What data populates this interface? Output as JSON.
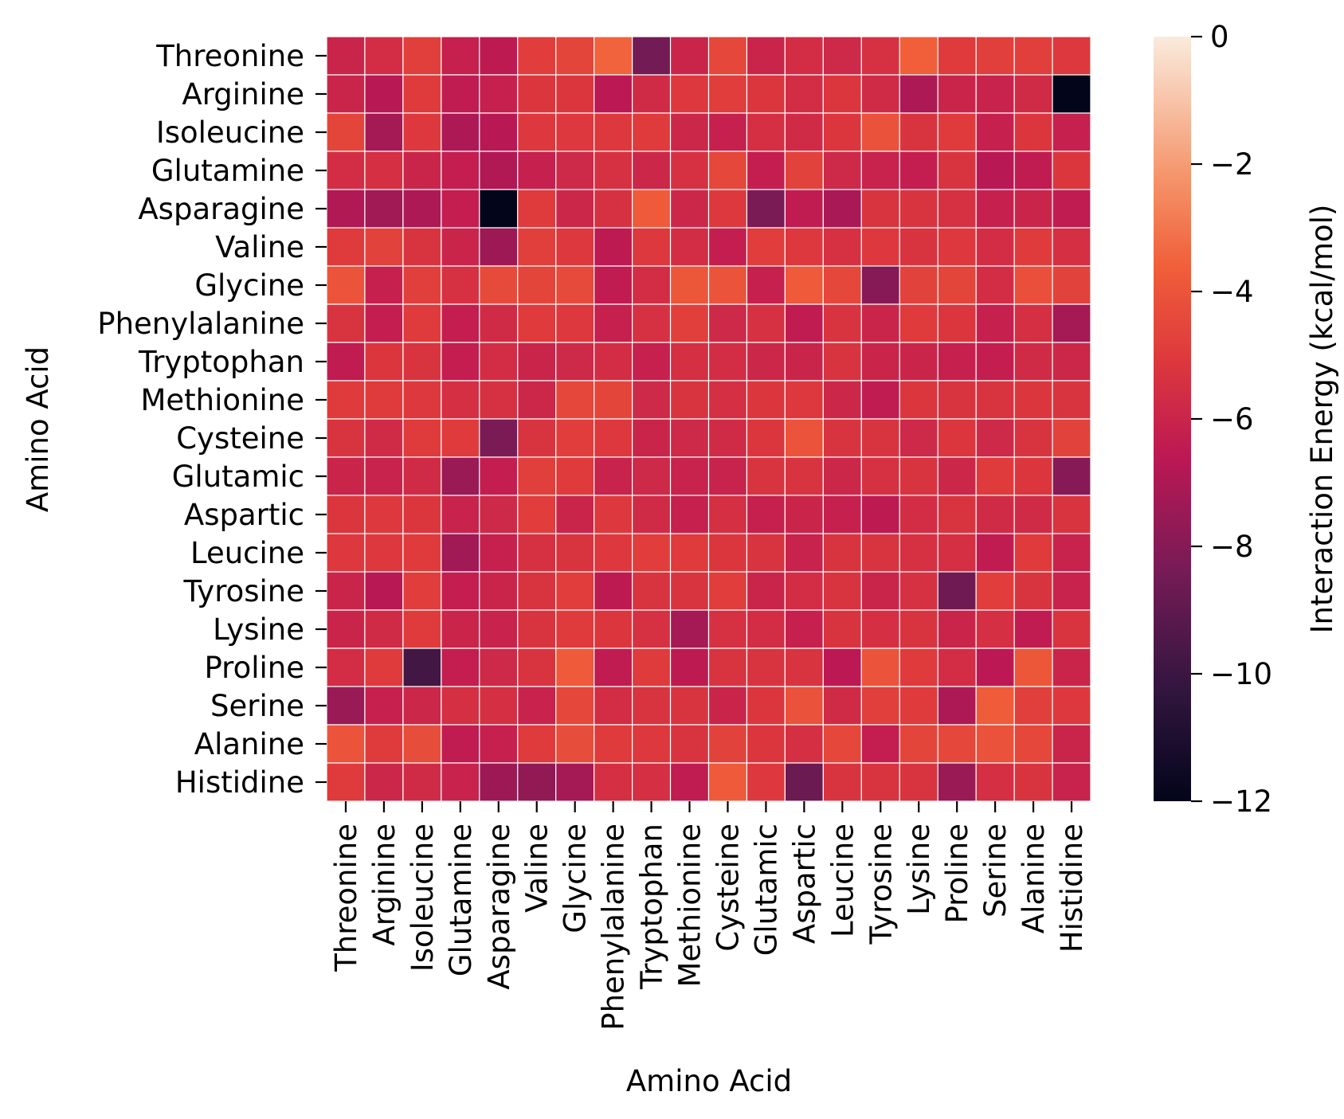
{
  "chart_data": {
    "type": "heatmap",
    "title": "",
    "xlabel": "Amino Acid",
    "ylabel": "Amino Acid",
    "rows": [
      "Threonine",
      "Arginine",
      "Isoleucine",
      "Glutamine",
      "Asparagine",
      "Valine",
      "Glycine",
      "Phenylalanine",
      "Tryptophan",
      "Methionine",
      "Cysteine",
      "Glutamic",
      "Aspartic",
      "Leucine",
      "Tyrosine",
      "Lysine",
      "Proline",
      "Serine",
      "Alanine",
      "Histidine"
    ],
    "columns": [
      "Threonine",
      "Arginine",
      "Isoleucine",
      "Glutamine",
      "Asparagine",
      "Valine",
      "Glycine",
      "Phenylalanine",
      "Tryptophan",
      "Methionine",
      "Cysteine",
      "Glutamic",
      "Aspartic",
      "Leucine",
      "Tyrosine",
      "Lysine",
      "Proline",
      "Serine",
      "Alanine",
      "Histidine"
    ],
    "values": [
      [
        -6.0,
        -5.6,
        -4.8,
        -6.2,
        -6.5,
        -4.9,
        -4.6,
        -3.5,
        -8.5,
        -6.0,
        -4.5,
        -6.0,
        -5.6,
        -5.8,
        -5.4,
        -3.6,
        -5.0,
        -4.8,
        -4.8,
        -5.1
      ],
      [
        -6.0,
        -6.7,
        -5.0,
        -6.4,
        -6.2,
        -5.2,
        -5.2,
        -6.6,
        -5.7,
        -5.1,
        -4.9,
        -5.2,
        -5.6,
        -5.2,
        -5.7,
        -7.0,
        -6.0,
        -6.1,
        -5.7,
        -12.0
      ],
      [
        -4.6,
        -7.2,
        -5.1,
        -7.0,
        -6.7,
        -5.1,
        -5.1,
        -5.1,
        -5.0,
        -5.9,
        -6.2,
        -5.5,
        -5.7,
        -5.2,
        -4.1,
        -5.3,
        -5.0,
        -6.2,
        -5.2,
        -6.2
      ],
      [
        -5.6,
        -5.5,
        -6.0,
        -6.3,
        -6.9,
        -6.2,
        -5.8,
        -5.4,
        -5.9,
        -5.4,
        -4.5,
        -6.3,
        -4.7,
        -5.8,
        -6.1,
        -6.3,
        -5.3,
        -6.7,
        -6.4,
        -5.2
      ],
      [
        -6.9,
        -7.3,
        -7.0,
        -6.3,
        -12.0,
        -5.0,
        -5.9,
        -5.4,
        -3.8,
        -5.9,
        -5.1,
        -8.3,
        -6.4,
        -7.1,
        -5.3,
        -5.3,
        -5.4,
        -6.2,
        -6.0,
        -6.4
      ],
      [
        -5.0,
        -4.7,
        -5.3,
        -6.0,
        -7.4,
        -4.8,
        -5.1,
        -6.5,
        -5.1,
        -5.6,
        -6.3,
        -4.9,
        -5.1,
        -5.4,
        -5.1,
        -5.3,
        -5.1,
        -5.6,
        -5.0,
        -5.5
      ],
      [
        -4.0,
        -6.2,
        -4.8,
        -5.4,
        -4.4,
        -4.6,
        -4.4,
        -6.4,
        -5.6,
        -3.9,
        -4.0,
        -6.2,
        -3.8,
        -4.5,
        -8.0,
        -4.7,
        -4.6,
        -5.6,
        -4.2,
        -4.7
      ],
      [
        -5.3,
        -6.3,
        -5.0,
        -6.3,
        -5.7,
        -5.0,
        -5.1,
        -6.2,
        -5.4,
        -4.8,
        -5.8,
        -5.4,
        -6.4,
        -5.3,
        -6.0,
        -5.0,
        -5.2,
        -6.2,
        -5.5,
        -7.2
      ],
      [
        -6.4,
        -5.2,
        -5.3,
        -6.3,
        -5.6,
        -6.0,
        -5.8,
        -5.6,
        -6.2,
        -5.5,
        -5.6,
        -5.9,
        -6.0,
        -5.3,
        -6.0,
        -6.0,
        -6.2,
        -6.3,
        -5.7,
        -5.9
      ],
      [
        -5.0,
        -5.0,
        -5.1,
        -5.5,
        -5.4,
        -5.9,
        -4.5,
        -4.6,
        -5.8,
        -5.3,
        -5.5,
        -5.2,
        -5.1,
        -5.9,
        -6.4,
        -5.2,
        -5.3,
        -5.3,
        -5.2,
        -5.3
      ],
      [
        -5.3,
        -5.7,
        -5.0,
        -5.0,
        -8.3,
        -5.3,
        -4.9,
        -5.1,
        -6.0,
        -5.8,
        -5.7,
        -5.2,
        -4.0,
        -5.3,
        -5.3,
        -5.8,
        -5.2,
        -5.8,
        -5.3,
        -4.7
      ],
      [
        -6.0,
        -6.1,
        -5.7,
        -7.5,
        -6.3,
        -4.8,
        -5.0,
        -6.1,
        -5.8,
        -6.1,
        -6.1,
        -5.3,
        -5.3,
        -5.9,
        -5.4,
        -5.3,
        -5.9,
        -5.0,
        -5.2,
        -8.0
      ],
      [
        -5.2,
        -5.1,
        -5.2,
        -6.1,
        -5.8,
        -4.9,
        -6.0,
        -5.1,
        -5.7,
        -6.2,
        -5.5,
        -6.2,
        -6.0,
        -6.2,
        -6.5,
        -5.6,
        -5.3,
        -5.7,
        -5.7,
        -5.3
      ],
      [
        -5.1,
        -5.1,
        -5.0,
        -7.3,
        -6.2,
        -5.4,
        -5.3,
        -5.1,
        -4.9,
        -5.0,
        -5.2,
        -5.3,
        -6.1,
        -5.3,
        -5.3,
        -5.4,
        -5.5,
        -6.4,
        -5.0,
        -6.1
      ],
      [
        -6.0,
        -6.7,
        -4.9,
        -6.3,
        -6.0,
        -5.3,
        -4.9,
        -6.5,
        -5.3,
        -5.3,
        -4.9,
        -6.0,
        -5.6,
        -5.3,
        -6.0,
        -5.4,
        -8.6,
        -4.9,
        -5.3,
        -6.1
      ],
      [
        -6.0,
        -5.7,
        -5.0,
        -6.0,
        -6.1,
        -5.3,
        -5.0,
        -5.2,
        -5.4,
        -7.2,
        -5.4,
        -5.6,
        -6.2,
        -5.3,
        -5.5,
        -5.3,
        -6.0,
        -5.5,
        -6.4,
        -5.3
      ],
      [
        -5.6,
        -5.0,
        -9.8,
        -6.3,
        -5.8,
        -5.3,
        -3.8,
        -6.4,
        -5.0,
        -6.5,
        -5.3,
        -5.3,
        -5.3,
        -6.6,
        -4.0,
        -5.0,
        -5.6,
        -6.6,
        -3.9,
        -6.0
      ],
      [
        -7.5,
        -6.2,
        -5.9,
        -5.5,
        -5.5,
        -6.1,
        -4.5,
        -5.6,
        -5.3,
        -5.3,
        -6.0,
        -5.2,
        -4.1,
        -5.7,
        -4.8,
        -5.0,
        -7.0,
        -3.7,
        -4.8,
        -5.1
      ],
      [
        -4.0,
        -5.0,
        -4.3,
        -6.4,
        -6.2,
        -5.0,
        -4.3,
        -5.0,
        -5.1,
        -5.3,
        -4.7,
        -5.2,
        -5.5,
        -4.5,
        -6.3,
        -4.6,
        -4.5,
        -4.1,
        -4.5,
        -6.0
      ],
      [
        -5.0,
        -5.9,
        -5.7,
        -6.1,
        -7.4,
        -7.7,
        -7.2,
        -5.5,
        -5.5,
        -6.4,
        -3.8,
        -5.1,
        -8.7,
        -5.3,
        -5.3,
        -5.3,
        -7.5,
        -5.5,
        -5.3,
        -6.1
      ]
    ],
    "colorbar": {
      "label": "Interaction Energy (kcal/mol)",
      "vmin": -12,
      "vmax": 0,
      "ticks": [
        0,
        -2,
        -4,
        -6,
        -8,
        -10,
        -12
      ],
      "tick_labels": [
        "0",
        "−2",
        "−4",
        "−6",
        "−8",
        "−10",
        "−12"
      ],
      "colormap": "rocket"
    },
    "grid_lines": "white",
    "legend": "colorbar-right"
  }
}
